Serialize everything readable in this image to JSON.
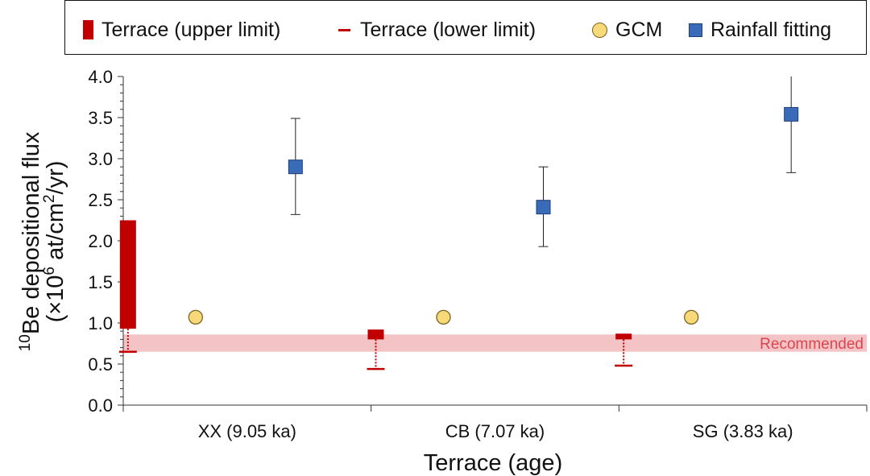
{
  "legend": {
    "upper": "Terrace (upper limit)",
    "lower": "Terrace (lower limit)",
    "gcm": "GCM",
    "rain": "Rainfall fitting"
  },
  "colors": {
    "terrace": "#c00000",
    "gcm_fill": "#f7d97a",
    "rain_fill": "#3a6bb8",
    "recommended_band": "#f4c3c6",
    "recommended_text": "#d9464e"
  },
  "chart_data": {
    "type": "scatter",
    "xlabel": "Terrace (age)",
    "ylabel_line1": "10Be depositional flux",
    "ylabel_line2": "(×10^6 at/cm^2/yr)",
    "ylim": [
      0,
      4
    ],
    "yticks": [
      "0.0",
      "0.5",
      "1.0",
      "1.5",
      "2.0",
      "2.5",
      "3.0",
      "3.5",
      "4.0"
    ],
    "categories": [
      "XX (9.05 ka)",
      "CB (7.07 ka)",
      "SG (3.83 ka)"
    ],
    "series": [
      {
        "name": "Terrace (upper limit)",
        "low": [
          0.93,
          0.8,
          0.8
        ],
        "high": [
          2.25,
          0.92,
          0.87
        ]
      },
      {
        "name": "Terrace (lower limit)",
        "values": [
          0.65,
          0.44,
          0.48
        ]
      },
      {
        "name": "GCM",
        "values": [
          1.07,
          1.07,
          1.07
        ]
      },
      {
        "name": "Rainfall fitting",
        "values": [
          2.9,
          2.41,
          3.54
        ],
        "err_low": [
          2.32,
          1.93,
          2.83
        ],
        "err_high": [
          3.49,
          2.9,
          4.0
        ]
      }
    ],
    "recommended": {
      "label": "Recommended",
      "low": 0.65,
      "high": 0.86
    },
    "grid": false,
    "legend_position": "top"
  }
}
